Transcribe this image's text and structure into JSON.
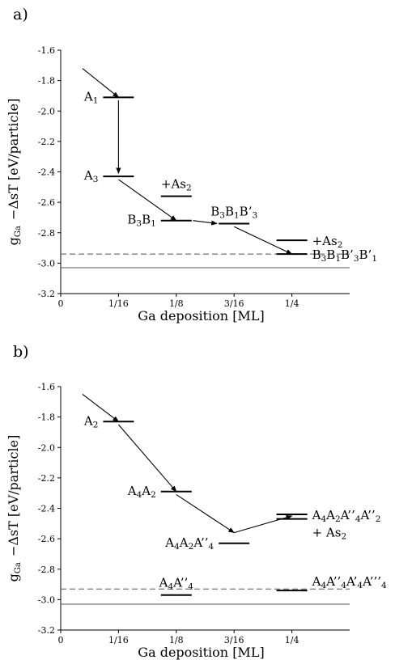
{
  "chart_data": [
    {
      "panel": "a)",
      "type": "level-diagram",
      "xlabel": "Ga deposition [ML]",
      "ylabel": "gₐ −ΔsT [eV/particle]",
      "ylabel_main": "g",
      "ylabel_sub": "Ga",
      "ylabel_rest": " −ΔsT [eV/particle]",
      "ylim": [
        -3.2,
        -1.6
      ],
      "xlim": [
        0,
        0.3125
      ],
      "y_ticks": [
        -1.6,
        -1.8,
        -2.0,
        -2.2,
        -2.4,
        -2.6,
        -2.8,
        -3.0,
        -3.2
      ],
      "y_tick_labels": [
        "-1.6",
        "-1.8",
        "-2.0",
        "-2.2",
        "-2.4",
        "-2.6",
        "-2.8",
        "-3.0",
        "-3.2"
      ],
      "x_ticks": [
        0,
        0.0625,
        0.125,
        0.1875,
        0.25
      ],
      "x_tick_labels": [
        "0",
        "1/16",
        "1/8",
        "3/16",
        "1/4"
      ],
      "reference_lines": [
        {
          "style": "dashed",
          "y": -2.94
        },
        {
          "style": "solid",
          "y": -3.03
        }
      ],
      "levels": [
        {
          "id": "A1",
          "x": 0.0625,
          "y": -1.91,
          "label": [
            [
              "A",
              ""
            ],
            [
              "1",
              "sub"
            ]
          ],
          "label_side": "left"
        },
        {
          "id": "A3",
          "x": 0.0625,
          "y": -2.43,
          "label": [
            [
              "A",
              ""
            ],
            [
              "3",
              "sub"
            ]
          ],
          "label_side": "left"
        },
        {
          "id": "AS2a",
          "x": 0.125,
          "y": -2.56,
          "label": [
            [
              "+As",
              ""
            ],
            [
              "2",
              "sub"
            ]
          ],
          "label_side": "above"
        },
        {
          "id": "B3B1",
          "x": 0.125,
          "y": -2.72,
          "label": [
            [
              "B",
              ""
            ],
            [
              "3",
              "sub"
            ],
            [
              "B",
              ""
            ],
            [
              "1",
              "sub"
            ]
          ],
          "label_side": "left"
        },
        {
          "id": "B3B1B3",
          "x": 0.1875,
          "y": -2.74,
          "label": [
            [
              "B",
              ""
            ],
            [
              "3",
              "sub"
            ],
            [
              "B",
              ""
            ],
            [
              "1",
              "sub"
            ],
            [
              "B’",
              ""
            ],
            [
              "3",
              "sub"
            ]
          ],
          "label_side": "above"
        },
        {
          "id": "AS2b",
          "x": 0.25,
          "y": -2.85,
          "label": [
            [
              "+As",
              ""
            ],
            [
              "2",
              "sub"
            ]
          ],
          "label_side": "right"
        },
        {
          "id": "B3B1B3B1",
          "x": 0.25,
          "y": -2.94,
          "label": [
            [
              "B",
              ""
            ],
            [
              "3",
              "sub"
            ],
            [
              "B",
              ""
            ],
            [
              "1",
              "sub"
            ],
            [
              "B’",
              ""
            ],
            [
              "3",
              "sub"
            ],
            [
              "B’",
              ""
            ],
            [
              "1",
              "sub"
            ]
          ],
          "label_side": "right"
        }
      ],
      "arrows": [
        {
          "from": [
            0.0235,
            -1.72
          ],
          "to": [
            0.0625,
            -1.91
          ]
        },
        {
          "from": [
            0.0625,
            -1.93
          ],
          "to": [
            0.0625,
            -2.41
          ]
        },
        {
          "from": [
            0.0625,
            -2.45
          ],
          "to": [
            0.125,
            -2.72
          ]
        },
        {
          "from": [
            0.143,
            -2.72
          ],
          "to": [
            0.169,
            -2.74
          ]
        },
        {
          "from": [
            0.1875,
            -2.76
          ],
          "to": [
            0.25,
            -2.94
          ]
        }
      ]
    },
    {
      "panel": "b)",
      "type": "level-diagram",
      "xlabel": "Ga  deposition [ML]",
      "ylabel": "gₐ −ΔsT [eV/particle]",
      "ylabel_main": "g",
      "ylabel_sub": "Ga",
      "ylabel_rest": " −ΔsT [eV/particle]",
      "ylim": [
        -3.2,
        -1.6
      ],
      "xlim": [
        0,
        0.3125
      ],
      "y_ticks": [
        -1.6,
        -1.8,
        -2.0,
        -2.2,
        -2.4,
        -2.6,
        -2.8,
        -3.0,
        -3.2
      ],
      "y_tick_labels": [
        "-1.6",
        "-1.8",
        "-2.0",
        "-2.2",
        "-2.4",
        "-2.6",
        "-2.8",
        "-3.0",
        "-3.2"
      ],
      "x_ticks": [
        0,
        0.0625,
        0.125,
        0.1875,
        0.25
      ],
      "x_tick_labels": [
        "0",
        "1/16",
        "1/8",
        "3/16",
        "1/4"
      ],
      "reference_lines": [
        {
          "style": "dashed",
          "y": -2.93
        },
        {
          "style": "solid",
          "y": -3.03
        }
      ],
      "levels": [
        {
          "id": "A2",
          "x": 0.0625,
          "y": -1.83,
          "label": [
            [
              "A",
              ""
            ],
            [
              "2",
              "sub"
            ]
          ],
          "label_side": "left"
        },
        {
          "id": "A4A2",
          "x": 0.125,
          "y": -2.29,
          "label": [
            [
              "A",
              ""
            ],
            [
              "4",
              "sub"
            ],
            [
              "A",
              ""
            ],
            [
              "2",
              "sub"
            ]
          ],
          "label_side": "left"
        },
        {
          "id": "A4A2A4",
          "x": 0.1875,
          "y": -2.63,
          "label": [
            [
              "A",
              ""
            ],
            [
              "4",
              "sub"
            ],
            [
              "A",
              ""
            ],
            [
              "2",
              "sub"
            ],
            [
              "A’’",
              ""
            ],
            [
              "4",
              "sub"
            ]
          ],
          "label_side": "left"
        },
        {
          "id": "A4A2A4A2a",
          "x": 0.25,
          "y": -2.44,
          "label": [
            [
              "A",
              ""
            ],
            [
              "4",
              "sub"
            ],
            [
              "A",
              ""
            ],
            [
              "2",
              "sub"
            ],
            [
              "A’’",
              ""
            ],
            [
              "4",
              "sub"
            ],
            [
              "A’’",
              ""
            ],
            [
              "2",
              "sub"
            ]
          ],
          "label_side": "right"
        },
        {
          "id": "A4A2A4A2b",
          "x": 0.25,
          "y": -2.47,
          "label": [
            [
              "+ As",
              ""
            ],
            [
              "2",
              "sub"
            ]
          ],
          "label_side": "right-below"
        },
        {
          "id": "A4A4",
          "x": 0.125,
          "y": -2.97,
          "label": [
            [
              "A",
              ""
            ],
            [
              "4",
              "sub"
            ],
            [
              "A’’",
              ""
            ],
            [
              "4",
              "sub"
            ]
          ],
          "label_side": "above"
        },
        {
          "id": "A4A4A4A4",
          "x": 0.25,
          "y": -2.94,
          "label": [
            [
              "A",
              ""
            ],
            [
              "4",
              "sub"
            ],
            [
              "A’’",
              ""
            ],
            [
              "4",
              "sub"
            ],
            [
              "A’",
              ""
            ],
            [
              "4",
              "sub"
            ],
            [
              "A’’’",
              ""
            ],
            [
              "4",
              "sub"
            ]
          ],
          "label_side": "right-above"
        }
      ],
      "arrows": [
        {
          "from": [
            0.0235,
            -1.65
          ],
          "to": [
            0.0625,
            -1.83
          ]
        },
        {
          "from": [
            0.0625,
            -1.85
          ],
          "to": [
            0.125,
            -2.29
          ]
        },
        {
          "from": [
            0.125,
            -2.31
          ],
          "to": [
            0.1875,
            -2.56
          ]
        },
        {
          "from": [
            0.1875,
            -2.56
          ],
          "to": [
            0.25,
            -2.45
          ]
        }
      ]
    }
  ]
}
